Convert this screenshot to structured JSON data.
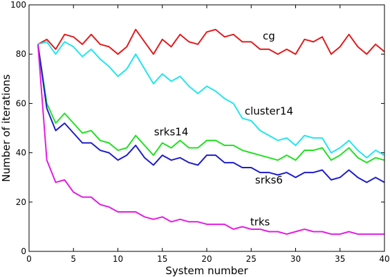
{
  "chart_data": {
    "type": "line",
    "title": "",
    "xlabel": "System number",
    "ylabel": "Number of iterations",
    "xlim": [
      0,
      40
    ],
    "ylim": [
      0,
      100
    ],
    "xticks": [
      "0",
      "5",
      "10",
      "15",
      "20",
      "25",
      "30",
      "35",
      "40"
    ],
    "yticks": [
      "0",
      "20",
      "40",
      "60",
      "80",
      "100"
    ],
    "grid": false,
    "legend": "inline labels next to lines",
    "x": [
      1,
      2,
      3,
      4,
      5,
      6,
      7,
      8,
      9,
      10,
      11,
      12,
      13,
      14,
      15,
      16,
      17,
      18,
      19,
      20,
      21,
      22,
      23,
      24,
      25,
      26,
      27,
      28,
      29,
      30,
      31,
      32,
      33,
      34,
      35,
      36,
      37,
      38,
      39,
      40
    ],
    "series": [
      {
        "name": "cg",
        "color": "#e31a1c",
        "values": [
          84,
          86,
          82,
          88,
          87,
          84,
          88,
          84,
          83,
          80,
          83,
          90,
          85,
          80,
          86,
          83,
          88,
          85,
          84,
          89,
          90,
          87,
          88,
          85,
          85,
          82,
          82,
          80,
          82,
          80,
          86,
          85,
          87,
          80,
          83,
          88,
          83,
          80,
          84,
          81
        ]
      },
      {
        "name": "cluster14",
        "color": "#22e5ee",
        "values": [
          84,
          85,
          80,
          85,
          83,
          79,
          82,
          78,
          75,
          71,
          74,
          80,
          74,
          68,
          72,
          69,
          71,
          67,
          64,
          67,
          65,
          62,
          60,
          54,
          53,
          49,
          47,
          45,
          46,
          43,
          47,
          46,
          46,
          40,
          42,
          45,
          41,
          38,
          41,
          39
        ]
      },
      {
        "name": "srks14",
        "color": "#22e022",
        "values": [
          84,
          60,
          52,
          56,
          52,
          48,
          49,
          45,
          44,
          41,
          42,
          47,
          43,
          39,
          44,
          42,
          45,
          42,
          42,
          45,
          45,
          43,
          43,
          41,
          40,
          39,
          38,
          37,
          39,
          37,
          41,
          41,
          42,
          37,
          39,
          42,
          38,
          36,
          38,
          37
        ]
      },
      {
        "name": "srks6",
        "color": "#1c1ccc",
        "values": [
          84,
          58,
          49,
          52,
          48,
          44,
          44,
          41,
          40,
          37,
          39,
          43,
          38,
          35,
          39,
          37,
          38,
          36,
          35,
          39,
          39,
          36,
          36,
          34,
          34,
          32,
          32,
          31,
          32,
          30,
          32,
          32,
          33,
          29,
          30,
          33,
          30,
          28,
          30,
          28
        ]
      },
      {
        "name": "trks",
        "color": "#e41ae4",
        "values": [
          84,
          37,
          28,
          29,
          24,
          22,
          22,
          19,
          18,
          16,
          16,
          16,
          14,
          13,
          14,
          12,
          13,
          12,
          12,
          11,
          11,
          11,
          9,
          10,
          9,
          9,
          8,
          8,
          7,
          8,
          9,
          8,
          8,
          7,
          7,
          8,
          7,
          7,
          7,
          7
        ]
      }
    ],
    "annotations": [
      {
        "text": "cg",
        "x": 27,
        "y": 86
      },
      {
        "text": "cluster14",
        "x": 27,
        "y": 55.5
      },
      {
        "text": "srks14",
        "x": 16,
        "y": 47
      },
      {
        "text": "srks6",
        "x": 27,
        "y": 27.5
      },
      {
        "text": "trks",
        "x": 26,
        "y": 10.5
      }
    ]
  }
}
